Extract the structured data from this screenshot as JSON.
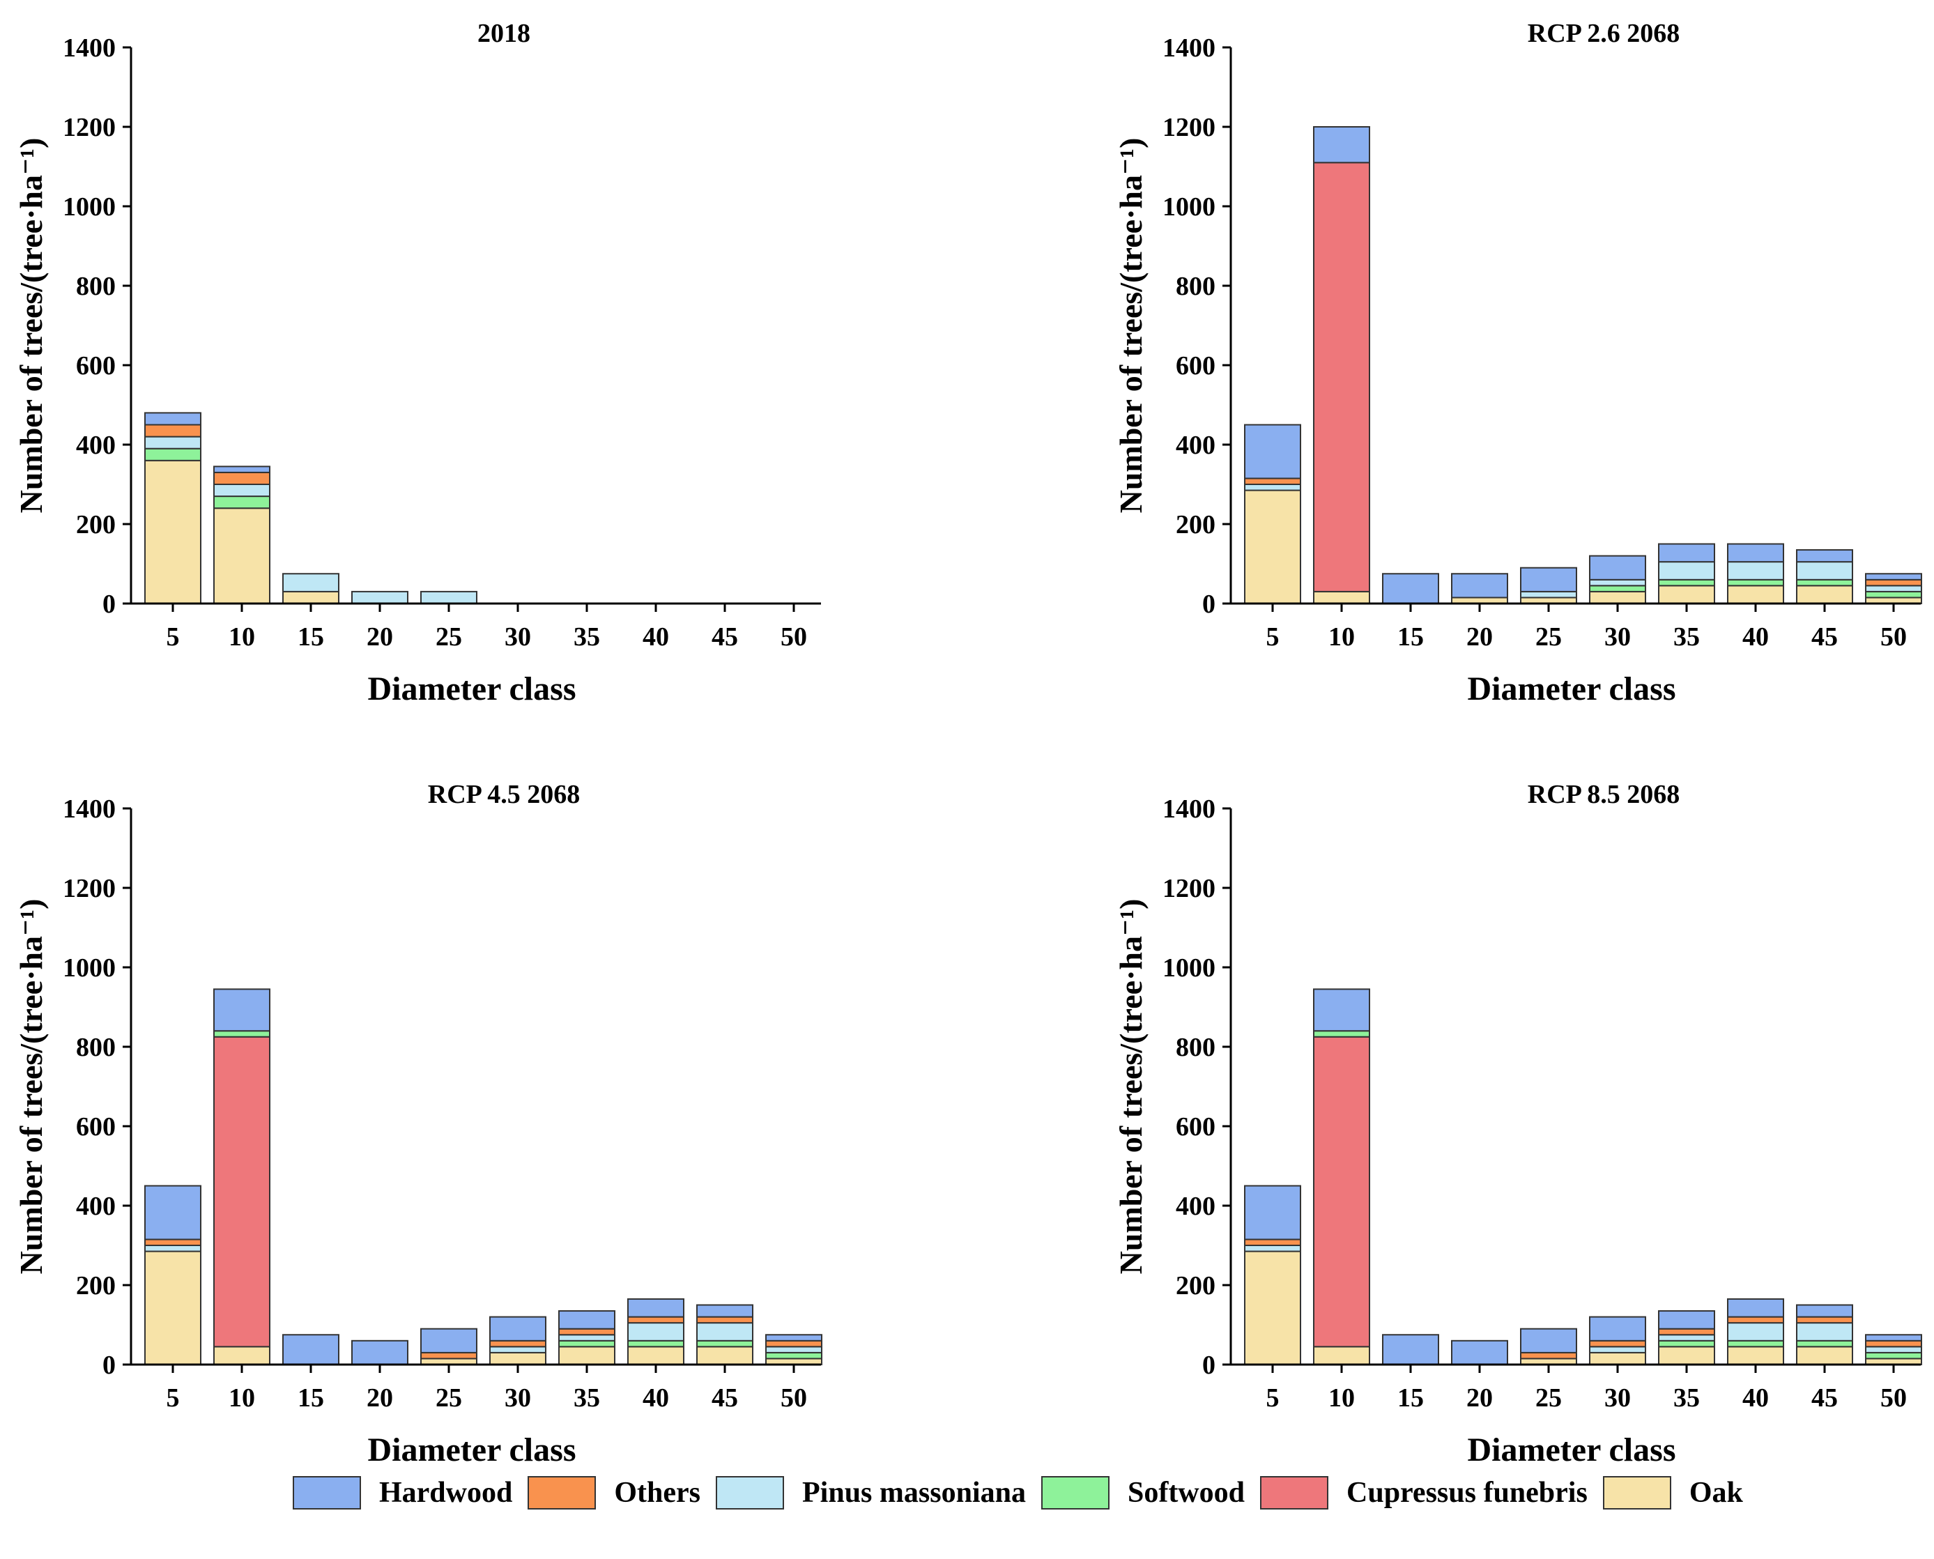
{
  "chart_data": [
    {
      "type": "bar",
      "stacked": true,
      "title": "2018",
      "xlabel": "Diameter class",
      "ylabel": "Number of trees/(tree·ha⁻¹)",
      "ylim": [
        0,
        1400
      ],
      "yticks": [
        0,
        200,
        400,
        600,
        800,
        1000,
        1200,
        1400
      ],
      "categories": [
        "5",
        "10",
        "15",
        "20",
        "25",
        "30",
        "35",
        "40",
        "45",
        "50"
      ],
      "series": [
        {
          "name": "Oak",
          "values": [
            360,
            240,
            30,
            0,
            0,
            0,
            0,
            0,
            0,
            0
          ]
        },
        {
          "name": "Cupressus funebris",
          "values": [
            0,
            0,
            0,
            0,
            0,
            0,
            0,
            0,
            0,
            0
          ]
        },
        {
          "name": "Softwood",
          "values": [
            30,
            30,
            0,
            0,
            0,
            0,
            0,
            0,
            0,
            0
          ]
        },
        {
          "name": "Pinus massoniana",
          "values": [
            30,
            30,
            45,
            30,
            30,
            0,
            0,
            0,
            0,
            0
          ]
        },
        {
          "name": "Others",
          "values": [
            30,
            30,
            0,
            0,
            0,
            0,
            0,
            0,
            0,
            0
          ]
        },
        {
          "name": "Hardwood",
          "values": [
            30,
            15,
            0,
            0,
            0,
            0,
            0,
            0,
            0,
            0
          ]
        }
      ]
    },
    {
      "type": "bar",
      "stacked": true,
      "title": "RCP 2.6  2068",
      "xlabel": "Diameter class",
      "ylabel": "Number of trees/(tree·ha⁻¹)",
      "ylim": [
        0,
        1400
      ],
      "yticks": [
        0,
        200,
        400,
        600,
        800,
        1000,
        1200,
        1400
      ],
      "categories": [
        "5",
        "10",
        "15",
        "20",
        "25",
        "30",
        "35",
        "40",
        "45",
        "50"
      ],
      "series": [
        {
          "name": "Oak",
          "values": [
            285,
            30,
            0,
            15,
            15,
            30,
            45,
            45,
            45,
            15
          ]
        },
        {
          "name": "Cupressus funebris",
          "values": [
            0,
            1080,
            0,
            0,
            0,
            0,
            0,
            0,
            0,
            0
          ]
        },
        {
          "name": "Softwood",
          "values": [
            0,
            0,
            0,
            0,
            0,
            15,
            15,
            15,
            15,
            15
          ]
        },
        {
          "name": "Pinus massoniana",
          "values": [
            15,
            0,
            0,
            0,
            15,
            15,
            45,
            45,
            45,
            15
          ]
        },
        {
          "name": "Others",
          "values": [
            15,
            0,
            0,
            0,
            0,
            0,
            0,
            0,
            0,
            15
          ]
        },
        {
          "name": "Hardwood",
          "values": [
            135,
            90,
            75,
            60,
            60,
            60,
            45,
            45,
            30,
            15
          ]
        }
      ]
    },
    {
      "type": "bar",
      "stacked": true,
      "title": "RCP 4.5  2068",
      "xlabel": "Diameter class",
      "ylabel": "Number of trees/(tree·ha⁻¹)",
      "ylim": [
        0,
        1400
      ],
      "yticks": [
        0,
        200,
        400,
        600,
        800,
        1000,
        1200,
        1400
      ],
      "categories": [
        "5",
        "10",
        "15",
        "20",
        "25",
        "30",
        "35",
        "40",
        "45",
        "50"
      ],
      "series": [
        {
          "name": "Oak",
          "values": [
            285,
            45,
            0,
            0,
            15,
            30,
            45,
            45,
            45,
            15
          ]
        },
        {
          "name": "Cupressus funebris",
          "values": [
            0,
            780,
            0,
            0,
            0,
            0,
            0,
            0,
            0,
            0
          ]
        },
        {
          "name": "Softwood",
          "values": [
            0,
            15,
            0,
            0,
            0,
            0,
            15,
            15,
            15,
            15
          ]
        },
        {
          "name": "Pinus massoniana",
          "values": [
            15,
            0,
            0,
            0,
            0,
            15,
            15,
            45,
            45,
            15
          ]
        },
        {
          "name": "Others",
          "values": [
            15,
            0,
            0,
            0,
            15,
            15,
            15,
            15,
            15,
            15
          ]
        },
        {
          "name": "Hardwood",
          "values": [
            135,
            105,
            75,
            60,
            60,
            60,
            45,
            45,
            30,
            15
          ]
        }
      ]
    },
    {
      "type": "bar",
      "stacked": true,
      "title": "RCP 8.5  2068",
      "xlabel": "Diameter class",
      "ylabel": "Number of trees/(tree·ha⁻¹)",
      "ylim": [
        0,
        1400
      ],
      "yticks": [
        0,
        200,
        400,
        600,
        800,
        1000,
        1200,
        1400
      ],
      "categories": [
        "5",
        "10",
        "15",
        "20",
        "25",
        "30",
        "35",
        "40",
        "45",
        "50"
      ],
      "series": [
        {
          "name": "Oak",
          "values": [
            285,
            45,
            0,
            0,
            15,
            30,
            45,
            45,
            45,
            15
          ]
        },
        {
          "name": "Cupressus funebris",
          "values": [
            0,
            780,
            0,
            0,
            0,
            0,
            0,
            0,
            0,
            0
          ]
        },
        {
          "name": "Softwood",
          "values": [
            0,
            15,
            0,
            0,
            0,
            0,
            15,
            15,
            15,
            15
          ]
        },
        {
          "name": "Pinus massoniana",
          "values": [
            15,
            0,
            0,
            0,
            0,
            15,
            15,
            45,
            45,
            15
          ]
        },
        {
          "name": "Others",
          "values": [
            15,
            0,
            0,
            0,
            15,
            15,
            15,
            15,
            15,
            15
          ]
        },
        {
          "name": "Hardwood",
          "values": [
            135,
            105,
            75,
            60,
            60,
            60,
            45,
            45,
            30,
            15
          ]
        }
      ]
    }
  ],
  "legend": [
    {
      "name": "Hardwood",
      "color": "#8aaff0"
    },
    {
      "name": "Others",
      "color": "#f9924e"
    },
    {
      "name": "Pinus massoniana",
      "color": "#bfe7f5"
    },
    {
      "name": "Softwood",
      "color": "#8ef29a"
    },
    {
      "name": "Cupressus funebris",
      "color": "#ee777b"
    },
    {
      "name": "Oak",
      "color": "#f7e3a8"
    }
  ]
}
